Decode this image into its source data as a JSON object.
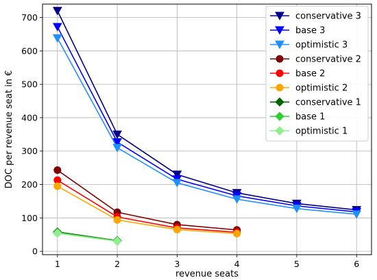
{
  "chart_data": {
    "type": "line",
    "xlabel": "revenue seats",
    "ylabel": "DOC per revenue seat in €",
    "xlim": [
      0.75,
      6.25
    ],
    "ylim": [
      -10,
      740
    ],
    "xticks": [
      1,
      2,
      3,
      4,
      5,
      6
    ],
    "yticks": [
      0,
      100,
      200,
      300,
      400,
      500,
      600,
      700
    ],
    "grid": true,
    "legend_position": "top-right",
    "series": [
      {
        "name": "conservative 3",
        "color": "#00008b",
        "marker": "triangle-down",
        "x": [
          1,
          2,
          3,
          4,
          5,
          6
        ],
        "y": [
          720,
          350,
          230,
          175,
          143,
          124
        ]
      },
      {
        "name": "base 3",
        "color": "#0000ff",
        "marker": "triangle-down",
        "x": [
          1,
          2,
          3,
          4,
          5,
          6
        ],
        "y": [
          672,
          327,
          216,
          166,
          136,
          118
        ]
      },
      {
        "name": "optimistic 3",
        "color": "#1e90ff",
        "marker": "triangle-down",
        "x": [
          1,
          2,
          3,
          4,
          5,
          6
        ],
        "y": [
          638,
          310,
          205,
          156,
          128,
          111
        ]
      },
      {
        "name": "conservative 2",
        "color": "#800000",
        "marker": "circle",
        "x": [
          1,
          2,
          3,
          4
        ],
        "y": [
          243,
          117,
          80,
          64
        ]
      },
      {
        "name": "base 2",
        "color": "#ff0000",
        "marker": "circle",
        "x": [
          1,
          2,
          3,
          4
        ],
        "y": [
          213,
          103,
          70,
          57
        ]
      },
      {
        "name": "optimistic 2",
        "color": "#ffa500",
        "marker": "circle",
        "x": [
          1,
          2,
          3,
          4
        ],
        "y": [
          195,
          94,
          65,
          53
        ]
      },
      {
        "name": "conservative 1",
        "color": "#006400",
        "marker": "diamond",
        "x": [
          1,
          2
        ],
        "y": [
          58,
          32
        ]
      },
      {
        "name": "base 1",
        "color": "#32cd32",
        "marker": "diamond",
        "x": [
          1,
          2
        ],
        "y": [
          56,
          31
        ]
      },
      {
        "name": "optimistic 1",
        "color": "#90ee90",
        "marker": "diamond",
        "x": [
          1,
          2
        ],
        "y": [
          54,
          30
        ]
      }
    ]
  }
}
